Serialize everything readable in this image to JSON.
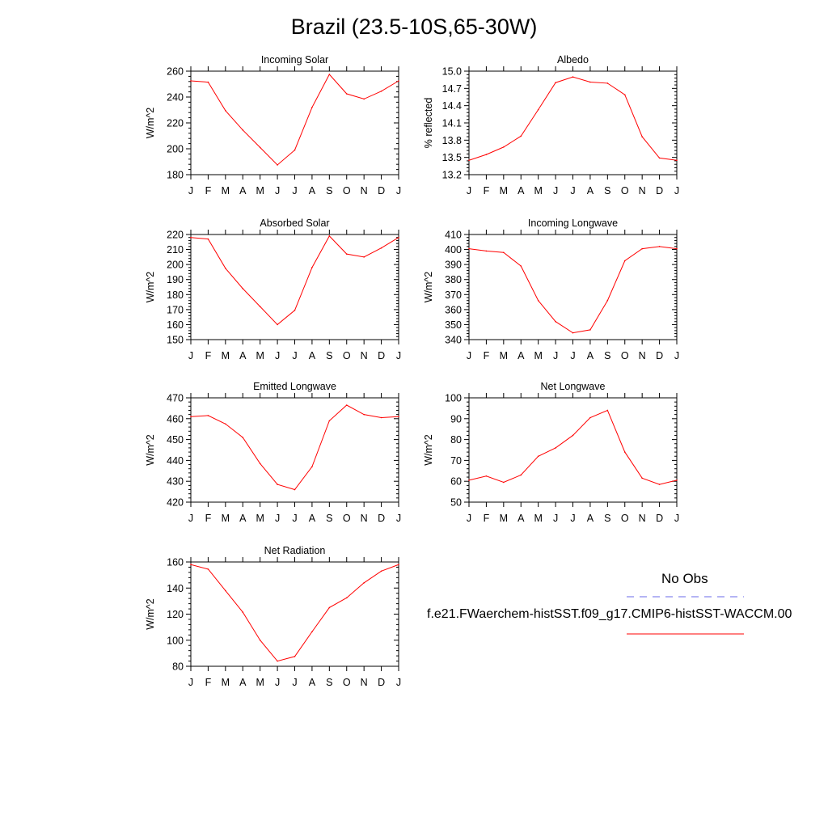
{
  "title": "Brazil (23.5-10S,65-30W)",
  "legend": {
    "obs_label": "No Obs",
    "obs_color": "#6a6ae8",
    "case_label": "f.e21.FWaerchem-histSST.f09_g17.CMIP6-histSST-WACCM.00",
    "case_color": "#ff0000"
  },
  "chart_data": [
    {
      "type": "line",
      "title": "Incoming Solar",
      "ylabel": "W/m^2",
      "categories": [
        "J",
        "F",
        "M",
        "A",
        "M",
        "J",
        "J",
        "A",
        "S",
        "O",
        "N",
        "D",
        "J"
      ],
      "ylim": [
        180,
        260
      ],
      "yticks": [
        180,
        200,
        220,
        240,
        260
      ],
      "yticklabels": [
        "180",
        "200",
        "220",
        "240",
        "260"
      ],
      "series": [
        {
          "values": [
            252.5,
            251.5,
            229.5,
            214.5,
            201,
            187.5,
            199,
            232,
            257.5,
            242.5,
            238.5,
            244.5,
            252.5
          ],
          "color": "#ff0000"
        }
      ]
    },
    {
      "type": "line",
      "title": "Albedo",
      "ylabel": "% reflected",
      "categories": [
        "J",
        "F",
        "M",
        "A",
        "M",
        "J",
        "J",
        "A",
        "S",
        "O",
        "N",
        "D",
        "J"
      ],
      "ylim": [
        13.2,
        15.0
      ],
      "yticks": [
        13.2,
        13.5,
        13.8,
        14.1,
        14.4,
        14.7,
        15.0
      ],
      "yticklabels": [
        "13.2",
        "13.5",
        "13.8",
        "14.1",
        "14.4",
        "14.7",
        "15.0"
      ],
      "series": [
        {
          "values": [
            13.45,
            13.55,
            13.68,
            13.87,
            14.33,
            14.8,
            14.9,
            14.81,
            14.79,
            14.59,
            13.86,
            13.49,
            13.45
          ],
          "color": "#ff0000"
        }
      ]
    },
    {
      "type": "line",
      "title": "Absorbed Solar",
      "ylabel": "W/m^2",
      "categories": [
        "J",
        "F",
        "M",
        "A",
        "M",
        "J",
        "J",
        "A",
        "S",
        "O",
        "N",
        "D",
        "J"
      ],
      "ylim": [
        150,
        220
      ],
      "yticks": [
        150,
        160,
        170,
        180,
        190,
        200,
        210,
        220
      ],
      "yticklabels": [
        "150",
        "160",
        "170",
        "180",
        "190",
        "200",
        "210",
        "220"
      ],
      "series": [
        {
          "values": [
            218,
            217,
            197.5,
            184,
            172,
            160,
            169.5,
            198,
            219,
            207,
            205,
            211,
            218
          ],
          "color": "#ff0000"
        }
      ]
    },
    {
      "type": "line",
      "title": "Incoming Longwave",
      "ylabel": "W/m^2",
      "categories": [
        "J",
        "F",
        "M",
        "A",
        "M",
        "J",
        "J",
        "A",
        "S",
        "O",
        "N",
        "D",
        "J"
      ],
      "ylim": [
        340,
        410
      ],
      "yticks": [
        340,
        350,
        360,
        370,
        380,
        390,
        400,
        410
      ],
      "yticklabels": [
        "340",
        "350",
        "360",
        "370",
        "380",
        "390",
        "400",
        "410"
      ],
      "series": [
        {
          "values": [
            400.5,
            399,
            398,
            389,
            366,
            352,
            344.5,
            346.5,
            366,
            392.5,
            400.5,
            402,
            400.5
          ],
          "color": "#ff0000"
        }
      ]
    },
    {
      "type": "line",
      "title": "Emitted Longwave",
      "ylabel": "W/m^2",
      "categories": [
        "J",
        "F",
        "M",
        "A",
        "M",
        "J",
        "J",
        "A",
        "S",
        "O",
        "N",
        "D",
        "J"
      ],
      "ylim": [
        420,
        470
      ],
      "yticks": [
        420,
        430,
        440,
        450,
        460,
        470
      ],
      "yticklabels": [
        "420",
        "430",
        "440",
        "450",
        "460",
        "470"
      ],
      "series": [
        {
          "values": [
            461,
            461.5,
            457.5,
            451,
            438.5,
            428.5,
            426,
            437,
            459,
            466.5,
            462,
            460.5,
            461
          ],
          "color": "#ff0000"
        }
      ]
    },
    {
      "type": "line",
      "title": "Net Longwave",
      "ylabel": "W/m^2",
      "categories": [
        "J",
        "F",
        "M",
        "A",
        "M",
        "J",
        "J",
        "A",
        "S",
        "O",
        "N",
        "D",
        "J"
      ],
      "ylim": [
        50,
        100
      ],
      "yticks": [
        50,
        60,
        70,
        80,
        90,
        100
      ],
      "yticklabels": [
        "50",
        "60",
        "70",
        "80",
        "90",
        "100"
      ],
      "series": [
        {
          "values": [
            60.5,
            62.5,
            59.5,
            63,
            72,
            76,
            82,
            90.5,
            94,
            74,
            61.5,
            58.5,
            60.5
          ],
          "color": "#ff0000"
        }
      ]
    },
    {
      "type": "line",
      "title": "Net Radiation",
      "ylabel": "W/m^2",
      "categories": [
        "J",
        "F",
        "M",
        "A",
        "M",
        "J",
        "J",
        "A",
        "S",
        "O",
        "N",
        "D",
        "J"
      ],
      "ylim": [
        80,
        160
      ],
      "yticks": [
        80,
        100,
        120,
        140,
        160
      ],
      "yticklabels": [
        "80",
        "100",
        "120",
        "140",
        "160"
      ],
      "series": [
        {
          "values": [
            158,
            154.5,
            138,
            121.5,
            100,
            84,
            87.5,
            106.5,
            125,
            132.5,
            144,
            153,
            158
          ],
          "color": "#ff0000"
        }
      ]
    }
  ]
}
